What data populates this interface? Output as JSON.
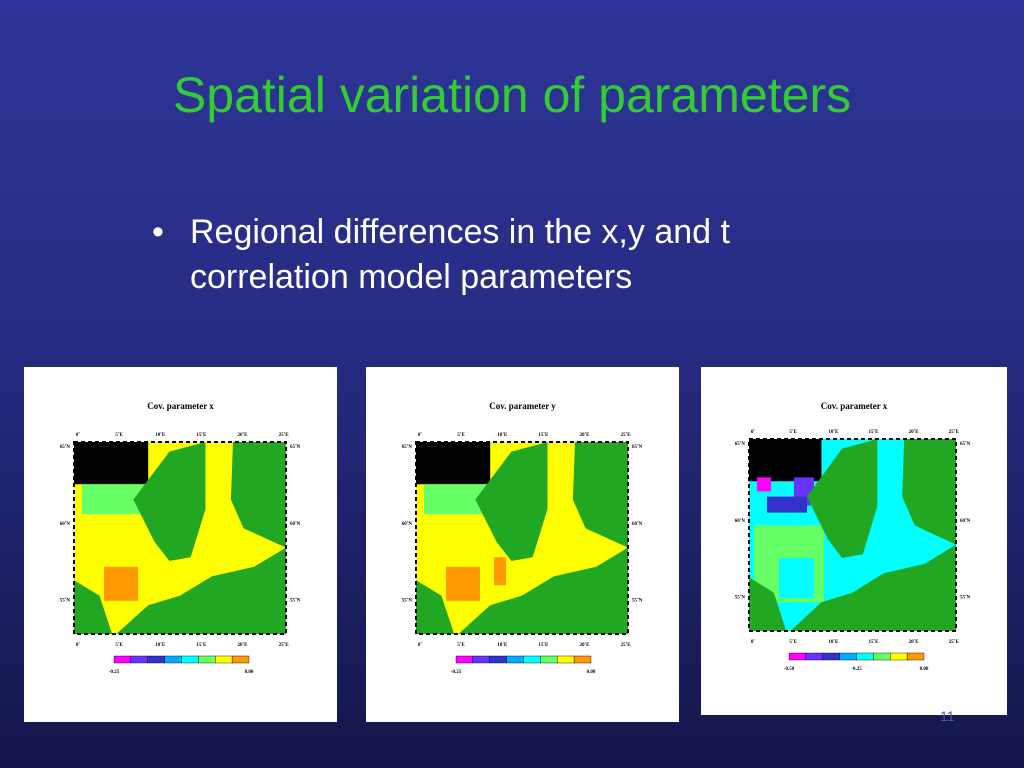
{
  "slide": {
    "title": "Spatial variation of parameters",
    "bullet": "Regional differences in the x,y and t correlation model parameters",
    "page_number": "11"
  },
  "colors": {
    "title": "#33cc33",
    "background": "#2a2f8c",
    "land": "#22a722",
    "no_data": "#000000",
    "colorbar_steps": [
      "#ff00ff",
      "#6633ff",
      "#3333cc",
      "#00aaff",
      "#00ffff",
      "#66ff66",
      "#ffff00",
      "#ff9900"
    ]
  },
  "figures": [
    {
      "title": "Cov. parameter x",
      "lon_ticks": [
        "0˚",
        "5˚E",
        "10˚E",
        "15˚E",
        "20˚E",
        "25˚E"
      ],
      "lat_ticks": [
        "65˚N",
        "60˚N",
        "55˚N"
      ],
      "colorbar_labels": [
        "-0.25",
        "0.00"
      ]
    },
    {
      "title": "Cov. parameter y",
      "lon_ticks": [
        "0˚",
        "5˚E",
        "10˚E",
        "15˚E",
        "20˚E",
        "25˚E"
      ],
      "lat_ticks": [
        "65˚N",
        "60˚N",
        "55˚N"
      ],
      "colorbar_labels": [
        "-0.25",
        "0.00"
      ]
    },
    {
      "title": "Cov. parameter x",
      "lon_ticks": [
        "0˚",
        "5˚E",
        "10˚E",
        "15˚E",
        "20˚E",
        "25˚E"
      ],
      "lat_ticks": [
        "65˚N",
        "60˚N",
        "55˚N"
      ],
      "colorbar_labels": [
        "-0.50",
        "-0.25",
        "0.00"
      ]
    }
  ]
}
